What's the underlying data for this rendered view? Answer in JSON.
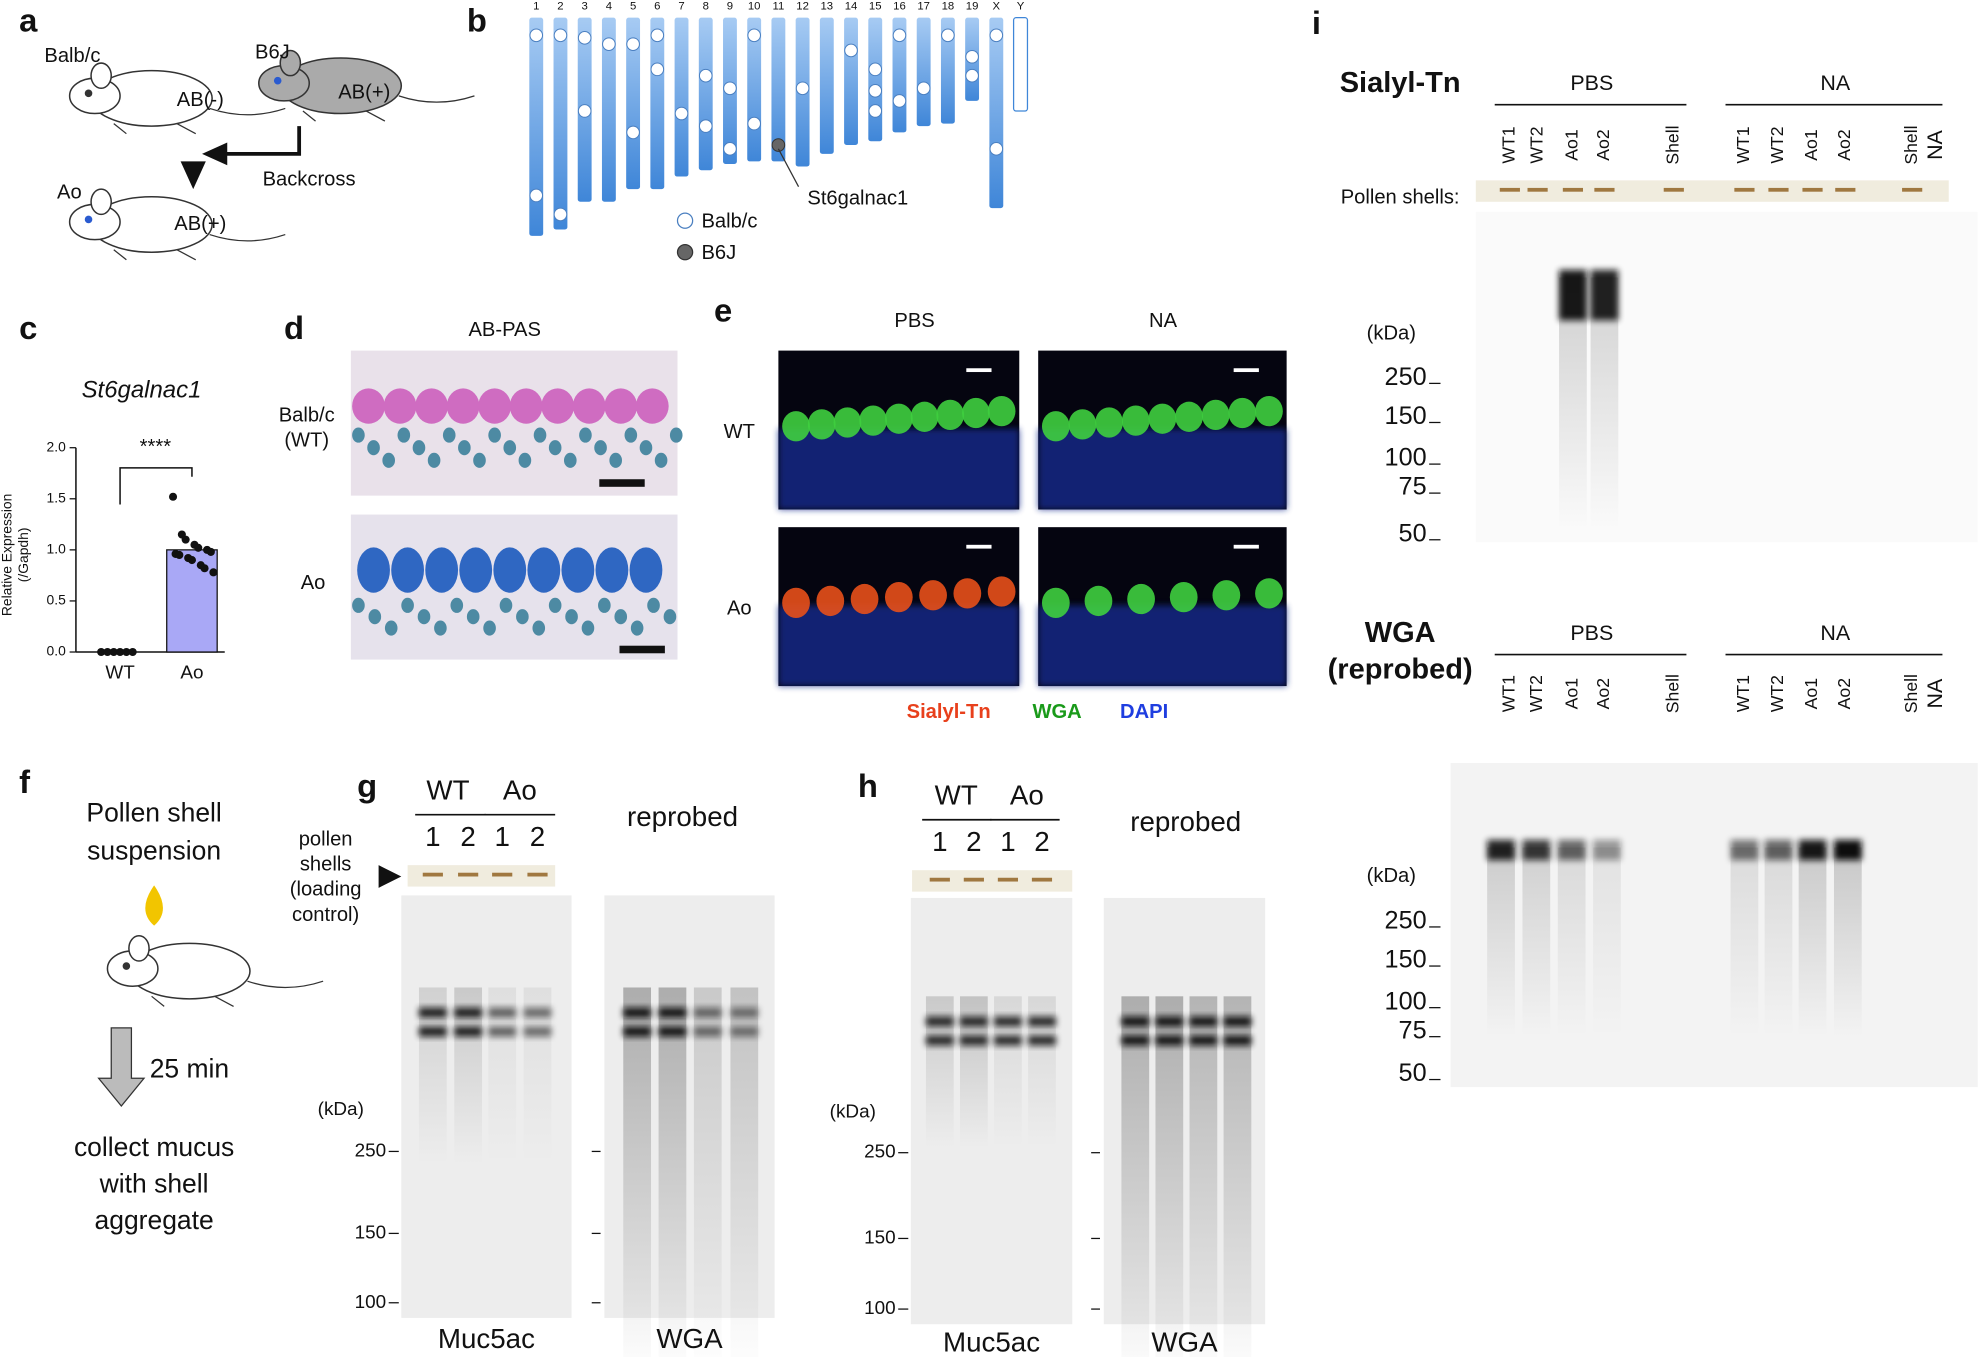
{
  "panels": {
    "a": {
      "label": "a",
      "strains": {
        "balbc": "Balb/c",
        "b6j": "B6J",
        "ao": "Ao"
      },
      "phenotypes": {
        "balbc": "AB(-)",
        "b6j": "AB(+)",
        "ao": "AB(+)"
      },
      "cross": "Backcross"
    },
    "b": {
      "label": "b",
      "chromosomes": [
        "1",
        "2",
        "3",
        "4",
        "5",
        "6",
        "7",
        "8",
        "9",
        "10",
        "11",
        "12",
        "13",
        "14",
        "15",
        "16",
        "17",
        "18",
        "19",
        "X",
        "Y"
      ],
      "gene": "St6galnac1",
      "legend": [
        "Balb/c",
        "B6J"
      ]
    },
    "c": {
      "label": "c",
      "type": "bar",
      "title": "St6galnac1",
      "y_label": [
        "Relative Expression",
        "(/Gapdh)"
      ],
      "categories": [
        "WT",
        "Ao"
      ],
      "values": [
        0,
        1.0
      ],
      "color": "#a9a8f6",
      "points": [
        [
          0,
          0,
          0,
          0,
          0,
          0
        ],
        [
          1.52,
          1.15,
          1.1,
          1.05,
          1.02,
          1.0,
          0.98,
          0.96,
          0.95,
          0.92,
          0.9,
          0.85,
          0.82,
          0.78
        ]
      ],
      "ylim": [
        0,
        2
      ],
      "yticks": [
        {
          "value": 0,
          "label": "0.0"
        },
        {
          "value": 0.5,
          "label": "0.5"
        },
        {
          "value": 1,
          "label": "1.0"
        },
        {
          "value": 1.5,
          "label": "1.5"
        },
        {
          "value": 2,
          "label": "2.0"
        }
      ],
      "significance": "****"
    },
    "d": {
      "label": "d",
      "stain": "AB-PAS",
      "rows": [
        [
          "Balb/c",
          "(WT)"
        ],
        [
          "Ao"
        ]
      ]
    },
    "e": {
      "label": "e",
      "columns": [
        "PBS",
        "NA"
      ],
      "rows": [
        "WT",
        "Ao"
      ],
      "legend": [
        {
          "name": "Sialyl-Tn",
          "color": "#e8401c"
        },
        {
          "name": "WGA",
          "color": "#1a9a1a"
        },
        {
          "name": "DAPI",
          "color": "#1f3ee0"
        }
      ]
    },
    "f": {
      "label": "f",
      "step1": [
        "Pollen shell",
        "suspension"
      ],
      "time": "25 min",
      "step2": [
        "collect mucus",
        "with shell",
        "aggregate"
      ]
    },
    "g": {
      "label": "g",
      "groups": [
        "WT",
        "Ao"
      ],
      "lanes": [
        "1",
        "2",
        "1",
        "2"
      ],
      "loading": [
        "pollen",
        "shells",
        "(loading",
        "control)"
      ],
      "reprobe": "reprobed",
      "unit": "(kDa)",
      "markers": [
        250,
        150,
        100
      ],
      "blots": [
        "Muc5ac",
        "WGA"
      ]
    },
    "h": {
      "label": "h",
      "groups": [
        "WT",
        "Ao"
      ],
      "lanes": [
        "1",
        "2",
        "1",
        "2"
      ],
      "reprobe": "reprobed",
      "unit": "(kDa)",
      "markers": [
        250,
        150,
        100
      ],
      "blots": [
        "Muc5ac",
        "WGA"
      ]
    },
    "i": {
      "label": "i",
      "blots": [
        {
          "title": [
            "Sialyl-Tn"
          ],
          "groups": [
            "PBS",
            "NA"
          ],
          "lanes": [
            "WT1",
            "WT2",
            "Ao1",
            "Ao2",
            "Shell",
            "WT1",
            "WT2",
            "Ao1",
            "Ao2",
            "Shell",
            "NA"
          ],
          "loading": "Pollen shells:",
          "unit": "(kDa)",
          "markers": [
            250,
            150,
            100,
            75,
            50
          ]
        },
        {
          "title": [
            "WGA",
            "(reprobed)"
          ],
          "groups": [
            "PBS",
            "NA"
          ],
          "lanes": [
            "WT1",
            "WT2",
            "Ao1",
            "Ao2",
            "Shell",
            "WT1",
            "WT2",
            "Ao1",
            "Ao2",
            "Shell",
            "NA"
          ],
          "unit": "(kDa)",
          "markers": [
            250,
            150,
            100,
            75,
            50
          ]
        }
      ]
    }
  }
}
